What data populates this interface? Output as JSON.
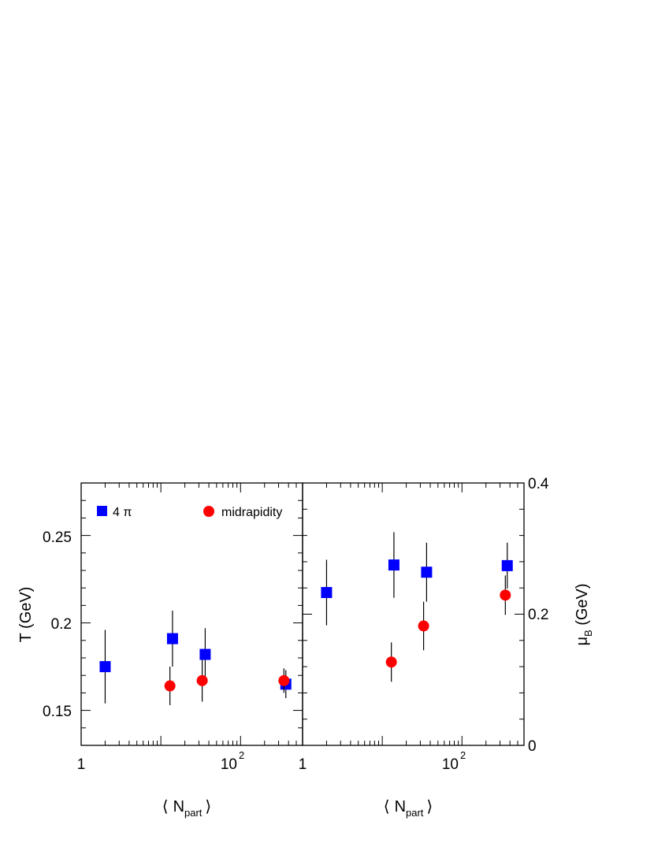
{
  "chart_data": [
    {
      "type": "scatter",
      "panel": "left",
      "xscale": "log",
      "xlim": [
        1,
        600
      ],
      "ylim": [
        0.13,
        0.28
      ],
      "x_tick_labels": [
        "1",
        "10"
      ],
      "x_tick_exp": "2",
      "xlabel": {
        "open": "⟨",
        "main": "N",
        "sub": "part",
        "close": "⟩"
      },
      "ylabel": "T (GeV)",
      "y_tick_labels": [
        "0.15",
        "0.2",
        "0.25"
      ],
      "y_tick_values": [
        0.15,
        0.2,
        0.25
      ],
      "series": [
        {
          "name": "4 π",
          "marker": "square",
          "color": "#0000ff",
          "points": [
            {
              "x": 2,
              "y": 0.175,
              "err": 0.021
            },
            {
              "x": 14,
              "y": 0.191,
              "err": 0.016
            },
            {
              "x": 36,
              "y": 0.182,
              "err": 0.015
            },
            {
              "x": 370,
              "y": 0.165,
              "err": 0.008
            }
          ]
        },
        {
          "name": "midrapidity",
          "marker": "circle",
          "color": "#ff0000",
          "points": [
            {
              "x": 13,
              "y": 0.164,
              "err": 0.011
            },
            {
              "x": 33,
              "y": 0.167,
              "err": 0.012
            },
            {
              "x": 350,
              "y": 0.167,
              "err": 0.007
            }
          ]
        }
      ]
    },
    {
      "type": "scatter",
      "panel": "right",
      "xscale": "log",
      "xlim": [
        1,
        600
      ],
      "ylim": [
        0,
        0.4
      ],
      "x_tick_labels": [
        "1",
        "10"
      ],
      "x_tick_exp": "2",
      "xlabel": {
        "open": "⟨",
        "main": "N",
        "sub": "part",
        "close": "⟩"
      },
      "ylabel": {
        "main": "μ",
        "sub": "B",
        "unit": " (GeV)"
      },
      "y_tick_labels": [
        "0",
        "0.2",
        "0.4"
      ],
      "y_tick_values": [
        0,
        0.2,
        0.4
      ],
      "series": [
        {
          "marker": "square",
          "color": "#0000ff",
          "points": [
            {
              "x": 2,
              "y": 0.233,
              "err": 0.05
            },
            {
              "x": 14,
              "y": 0.275,
              "err": 0.05
            },
            {
              "x": 36,
              "y": 0.264,
              "err": 0.045
            },
            {
              "x": 370,
              "y": 0.274,
              "err": 0.035
            }
          ]
        },
        {
          "marker": "circle",
          "color": "#ff0000",
          "points": [
            {
              "x": 13,
              "y": 0.127,
              "err": 0.03
            },
            {
              "x": 33,
              "y": 0.182,
              "err": 0.037
            },
            {
              "x": 350,
              "y": 0.229,
              "err": 0.03
            }
          ]
        }
      ]
    }
  ]
}
